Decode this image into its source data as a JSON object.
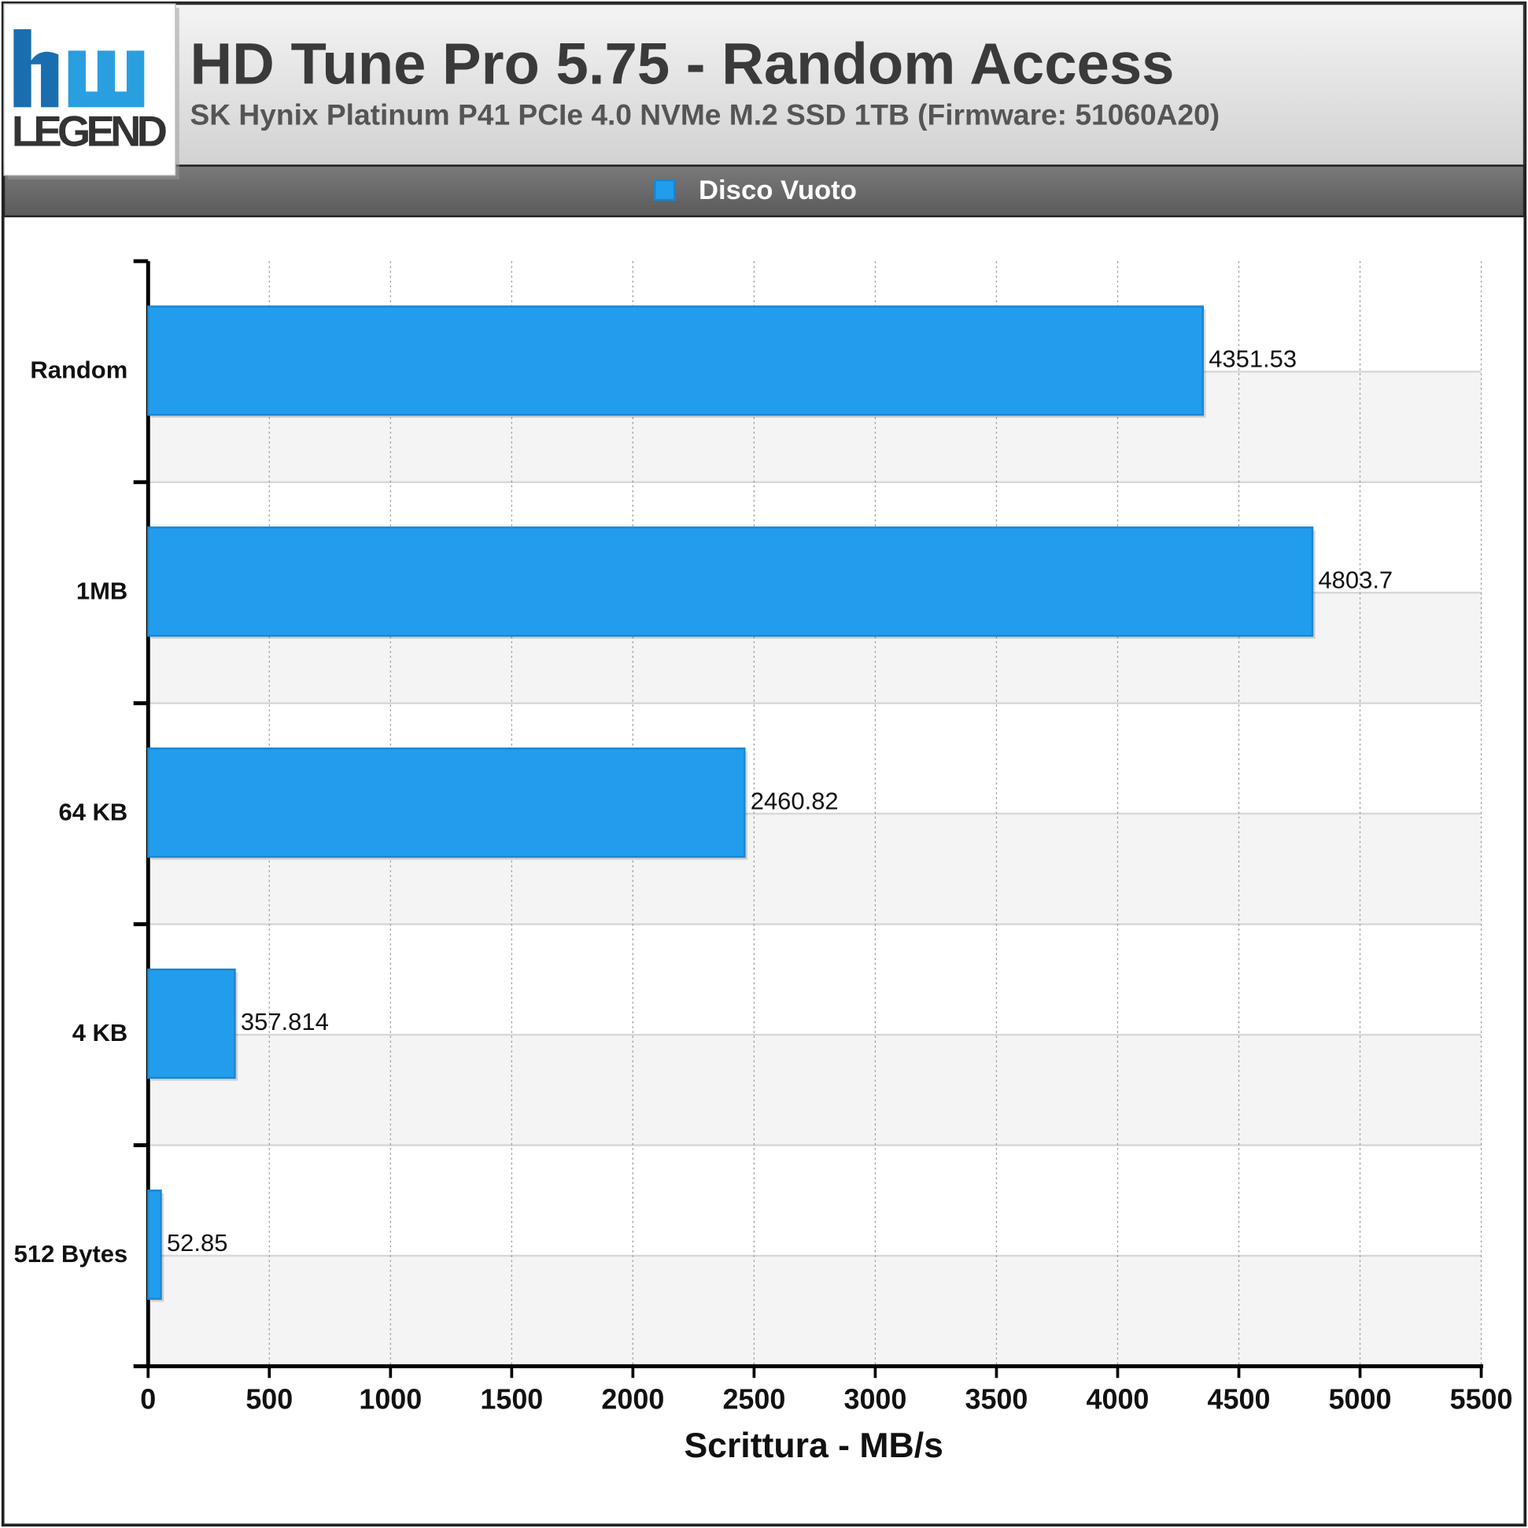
{
  "logo": {
    "text": "LEGEND"
  },
  "chart_data": {
    "type": "bar",
    "orientation": "horizontal",
    "title": "HD Tune Pro 5.75 - Random Access",
    "subtitle": "SK Hynix Platinum P41 PCIe 4.0 NVMe M.2 SSD 1TB (Firmware: 51060A20)",
    "x_label": "Scrittura - MB/s",
    "categories": [
      "Random",
      "1MB",
      "64 KB",
      "4 KB",
      "512 Bytes"
    ],
    "series": [
      {
        "name": "Disco Vuoto",
        "color": "#229dee",
        "values": [
          4351.53,
          4803.7,
          2460.82,
          357.814,
          52.85
        ]
      }
    ],
    "xlim": [
      0,
      5500
    ],
    "xticks": [
      0,
      500,
      1000,
      1500,
      2000,
      2500,
      3000,
      3500,
      4000,
      4500,
      5000,
      5500
    ],
    "grid": true,
    "legend": "top"
  }
}
